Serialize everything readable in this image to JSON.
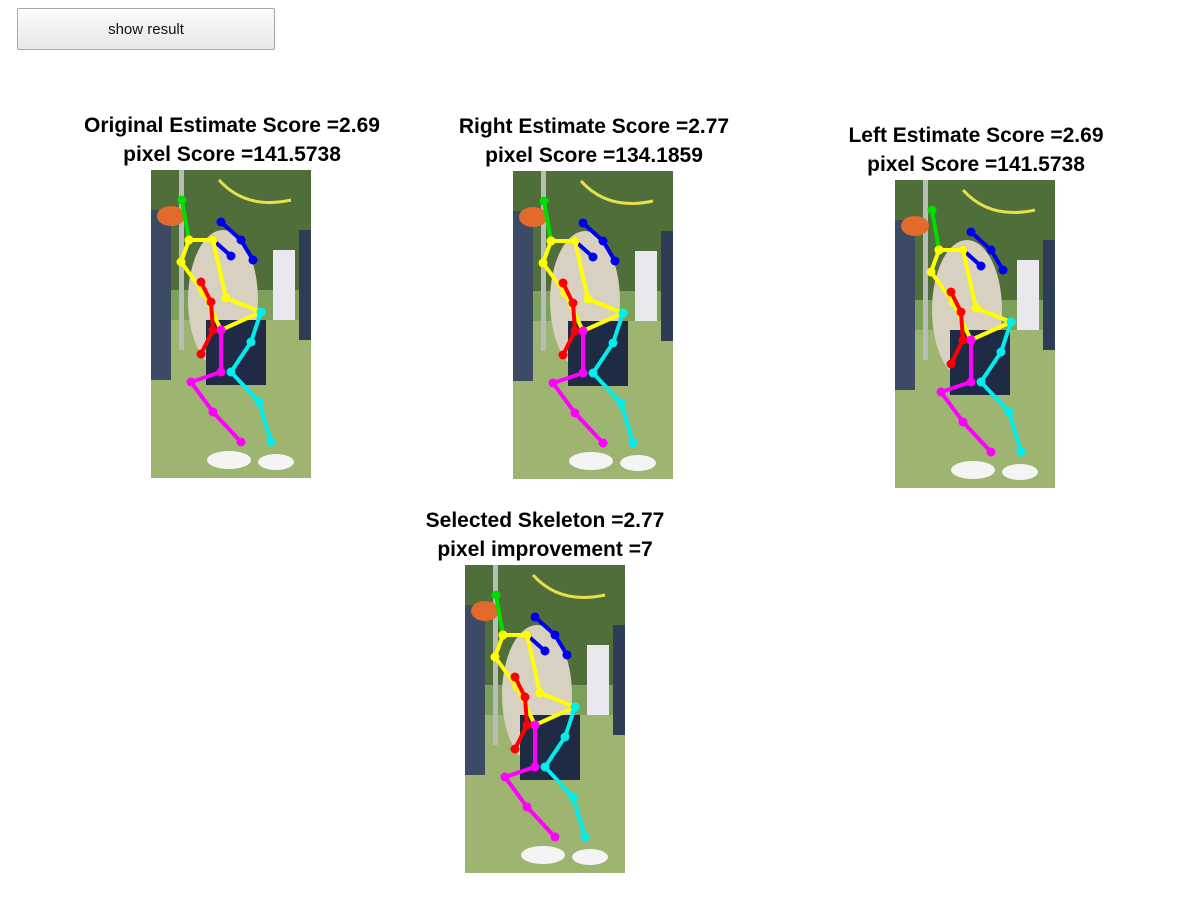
{
  "toolbar": {
    "show_result_label": "show result"
  },
  "panels": [
    {
      "title": "Original Estimate Score =2.69",
      "subtitle": "pixel Score =141.5738"
    },
    {
      "title": "Right Estimate Score =2.77",
      "subtitle": "pixel Score =134.1859"
    },
    {
      "title": "Left Estimate Score =2.69",
      "subtitle": "pixel Score =141.5738"
    },
    {
      "title": "Selected Skeleton =2.77",
      "subtitle": "pixel improvement =7"
    }
  ],
  "colors": {
    "head": "#00dd00",
    "upper_right_arm": "#0000ee",
    "torso": "#ffff00",
    "lower_left_arm": "#ff0000",
    "left_leg": "#ff00ff",
    "right_leg": "#00eeee"
  }
}
